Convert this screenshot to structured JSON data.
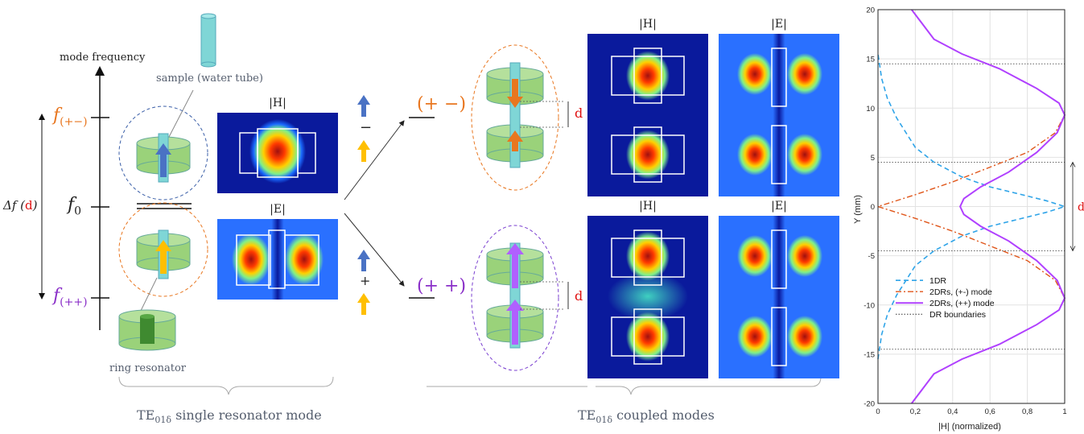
{
  "left_panel": {
    "axis_title": "mode frequency",
    "f_plus_minus": "f",
    "f_plus_minus_sub": "(+−)",
    "f_zero": "f",
    "f_zero_sub": "0",
    "f_plus_plus": "f",
    "f_plus_plus_sub": "(++)",
    "delta_f_prefix": "Δf (",
    "delta_f_d": "d",
    "delta_f_suffix": ")",
    "sample_label": "sample (water tube)",
    "ring_label": "ring resonator",
    "single_mode_caption_prefix": "TE",
    "single_mode_caption_sub": "01δ",
    "single_mode_caption_suffix": " single resonator mode"
  },
  "single_fields": {
    "h_title": "|H|",
    "e_title": "|E|"
  },
  "middle": {
    "minus_sign": "−",
    "plus_sign": "+"
  },
  "coupled": {
    "mode_plus_minus": "(+ −)",
    "mode_plus_plus": "(+ +)",
    "d_label_top": "d",
    "d_label_bottom": "d",
    "h_title_top": "|H|",
    "e_title_top": "|E|",
    "h_title_bottom": "|H|",
    "e_title_bottom": "|E|",
    "caption_prefix": "TE",
    "caption_sub": "01δ",
    "caption_suffix": " coupled modes"
  },
  "colors": {
    "orange": "#e8761f",
    "purple": "#a64dff",
    "blue_arrow": "#4a72c4",
    "yellow_arrow": "#ffbf00",
    "dr_green": "#9ad27a",
    "tube_cyan": "#7fd6d6",
    "curve_1dr": "#2fa4e8",
    "curve_pm": "#e0561a",
    "curve_pp": "#b040ff"
  },
  "chart_data": {
    "type": "line",
    "xlabel": "|H| (normalized)",
    "ylabel": "Y (mm)",
    "xlim": [
      0,
      1
    ],
    "ylim": [
      -20,
      20
    ],
    "xticks": [
      "0",
      "0,2",
      "0,4",
      "0,6",
      "0,8",
      "1"
    ],
    "yticks": [
      "-20",
      "-15",
      "-10",
      "-5",
      "0",
      "5",
      "10",
      "15",
      "20"
    ],
    "grid": true,
    "legend_position": "lower-left",
    "annotation_d": "d",
    "dr_boundaries_y": [
      14.5,
      4.5,
      -4.5,
      -14.5
    ],
    "series": [
      {
        "name": "1DR",
        "style": "dashed",
        "points": [
          [
            0,
            -15.5
          ],
          [
            0.02,
            -13
          ],
          [
            0.05,
            -11
          ],
          [
            0.1,
            -9
          ],
          [
            0.15,
            -7.5
          ],
          [
            0.2,
            -6
          ],
          [
            0.3,
            -4.5
          ],
          [
            0.45,
            -3
          ],
          [
            0.6,
            -2
          ],
          [
            0.75,
            -1.3
          ],
          [
            0.9,
            -0.6
          ],
          [
            1,
            0
          ],
          [
            0.9,
            0.6
          ],
          [
            0.75,
            1.3
          ],
          [
            0.6,
            2
          ],
          [
            0.45,
            3
          ],
          [
            0.3,
            4.5
          ],
          [
            0.2,
            6
          ],
          [
            0.15,
            7.5
          ],
          [
            0.1,
            9
          ],
          [
            0.05,
            11
          ],
          [
            0.02,
            13
          ],
          [
            0,
            15.5
          ]
        ]
      },
      {
        "name": "2DRs, (+-) mode",
        "style": "dashdot",
        "points": [
          [
            0.18,
            -20
          ],
          [
            0.3,
            -17
          ],
          [
            0.45,
            -15.5
          ],
          [
            0.65,
            -14
          ],
          [
            0.85,
            -12
          ],
          [
            0.97,
            -10.5
          ],
          [
            1,
            -9.3
          ],
          [
            0.95,
            -7.5
          ],
          [
            0.8,
            -5.5
          ],
          [
            0.6,
            -4
          ],
          [
            0.4,
            -2.5
          ],
          [
            0.2,
            -1.2
          ],
          [
            0,
            0
          ],
          [
            0.2,
            1.2
          ],
          [
            0.4,
            2.5
          ],
          [
            0.6,
            4
          ],
          [
            0.8,
            5.5
          ],
          [
            0.95,
            7.5
          ],
          [
            1,
            9.3
          ],
          [
            0.97,
            10.5
          ],
          [
            0.85,
            12
          ],
          [
            0.65,
            14
          ],
          [
            0.45,
            15.5
          ],
          [
            0.3,
            17
          ],
          [
            0.18,
            20
          ]
        ]
      },
      {
        "name": "2DRs, (++) mode",
        "style": "solid",
        "points": [
          [
            0.18,
            -20
          ],
          [
            0.3,
            -17
          ],
          [
            0.45,
            -15.5
          ],
          [
            0.65,
            -14
          ],
          [
            0.85,
            -12
          ],
          [
            0.97,
            -10.5
          ],
          [
            1,
            -9.3
          ],
          [
            0.96,
            -7.5
          ],
          [
            0.85,
            -5.5
          ],
          [
            0.7,
            -3.5
          ],
          [
            0.55,
            -2
          ],
          [
            0.46,
            -0.8
          ],
          [
            0.44,
            0
          ],
          [
            0.46,
            0.8
          ],
          [
            0.55,
            2
          ],
          [
            0.7,
            3.5
          ],
          [
            0.85,
            5.5
          ],
          [
            0.96,
            7.5
          ],
          [
            1,
            9.3
          ],
          [
            0.97,
            10.5
          ],
          [
            0.85,
            12
          ],
          [
            0.65,
            14
          ],
          [
            0.45,
            15.5
          ],
          [
            0.3,
            17
          ],
          [
            0.18,
            20
          ]
        ]
      },
      {
        "name": "DR boundaries",
        "style": "dotted",
        "points": []
      }
    ]
  }
}
